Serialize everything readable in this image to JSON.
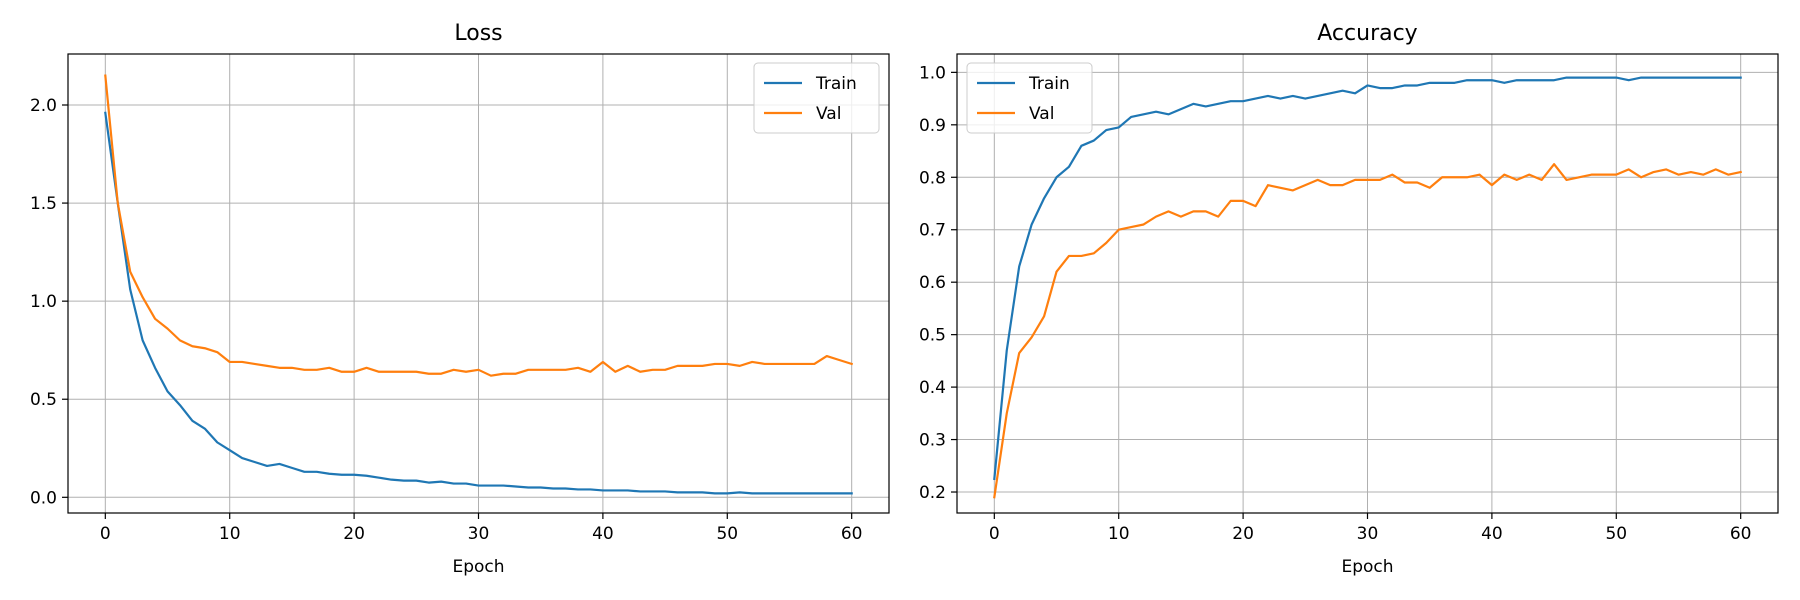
{
  "chart_data": [
    {
      "type": "line",
      "title": "Loss",
      "xlabel": "Epoch",
      "ylabel": "",
      "xlim": [
        -3,
        63
      ],
      "ylim": [
        -0.08,
        2.26
      ],
      "xticks": [
        0,
        10,
        20,
        30,
        40,
        50,
        60
      ],
      "yticks": [
        0.0,
        0.5,
        1.0,
        1.5,
        2.0
      ],
      "ytick_decimals": 1,
      "grid": true,
      "legend_position": "top-right",
      "series": [
        {
          "name": "Train",
          "color": "#1f77b4",
          "values": [
            1.96,
            1.5,
            1.06,
            0.8,
            0.66,
            0.54,
            0.47,
            0.39,
            0.35,
            0.28,
            0.24,
            0.2,
            0.18,
            0.16,
            0.17,
            0.15,
            0.13,
            0.13,
            0.12,
            0.115,
            0.115,
            0.11,
            0.1,
            0.09,
            0.085,
            0.085,
            0.075,
            0.08,
            0.07,
            0.07,
            0.06,
            0.06,
            0.06,
            0.055,
            0.05,
            0.05,
            0.045,
            0.045,
            0.04,
            0.04,
            0.035,
            0.035,
            0.035,
            0.03,
            0.03,
            0.03,
            0.025,
            0.025,
            0.025,
            0.02,
            0.02,
            0.025,
            0.02,
            0.02,
            0.02,
            0.02,
            0.02,
            0.02,
            0.02,
            0.02,
            0.02
          ]
        },
        {
          "name": "Val",
          "color": "#ff7f0e",
          "values": [
            2.15,
            1.5,
            1.15,
            1.02,
            0.91,
            0.86,
            0.8,
            0.77,
            0.76,
            0.74,
            0.69,
            0.69,
            0.68,
            0.67,
            0.66,
            0.66,
            0.65,
            0.65,
            0.66,
            0.64,
            0.64,
            0.66,
            0.64,
            0.64,
            0.64,
            0.64,
            0.63,
            0.63,
            0.65,
            0.64,
            0.65,
            0.62,
            0.63,
            0.63,
            0.65,
            0.65,
            0.65,
            0.65,
            0.66,
            0.64,
            0.69,
            0.64,
            0.67,
            0.64,
            0.65,
            0.65,
            0.67,
            0.67,
            0.67,
            0.68,
            0.68,
            0.67,
            0.69,
            0.68,
            0.68,
            0.68,
            0.68,
            0.68,
            0.72,
            0.7,
            0.68
          ]
        }
      ]
    },
    {
      "type": "line",
      "title": "Accuracy",
      "xlabel": "Epoch",
      "ylabel": "",
      "xlim": [
        -3,
        63
      ],
      "ylim": [
        0.16,
        1.035
      ],
      "xticks": [
        0,
        10,
        20,
        30,
        40,
        50,
        60
      ],
      "yticks": [
        0.2,
        0.3,
        0.4,
        0.5,
        0.6,
        0.7,
        0.8,
        0.9,
        1.0
      ],
      "ytick_decimals": 1,
      "grid": true,
      "legend_position": "top-left",
      "series": [
        {
          "name": "Train",
          "color": "#1f77b4",
          "values": [
            0.225,
            0.47,
            0.63,
            0.71,
            0.76,
            0.8,
            0.82,
            0.86,
            0.87,
            0.89,
            0.895,
            0.915,
            0.92,
            0.925,
            0.92,
            0.93,
            0.94,
            0.935,
            0.94,
            0.945,
            0.945,
            0.95,
            0.955,
            0.95,
            0.955,
            0.95,
            0.955,
            0.96,
            0.965,
            0.96,
            0.975,
            0.97,
            0.97,
            0.975,
            0.975,
            0.98,
            0.98,
            0.98,
            0.985,
            0.985,
            0.985,
            0.98,
            0.985,
            0.985,
            0.985,
            0.985,
            0.99,
            0.99,
            0.99,
            0.99,
            0.99,
            0.985,
            0.99,
            0.99,
            0.99,
            0.99,
            0.99,
            0.99,
            0.99,
            0.99,
            0.99
          ]
        },
        {
          "name": "Val",
          "color": "#ff7f0e",
          "values": [
            0.19,
            0.35,
            0.465,
            0.495,
            0.535,
            0.62,
            0.65,
            0.65,
            0.655,
            0.675,
            0.7,
            0.705,
            0.71,
            0.725,
            0.735,
            0.725,
            0.735,
            0.735,
            0.725,
            0.755,
            0.755,
            0.745,
            0.785,
            0.78,
            0.775,
            0.785,
            0.795,
            0.785,
            0.785,
            0.795,
            0.795,
            0.795,
            0.805,
            0.79,
            0.79,
            0.78,
            0.8,
            0.8,
            0.8,
            0.805,
            0.785,
            0.805,
            0.795,
            0.805,
            0.795,
            0.825,
            0.795,
            0.8,
            0.805,
            0.805,
            0.805,
            0.815,
            0.8,
            0.81,
            0.815,
            0.805,
            0.81,
            0.805,
            0.815,
            0.805,
            0.81
          ]
        }
      ]
    }
  ]
}
